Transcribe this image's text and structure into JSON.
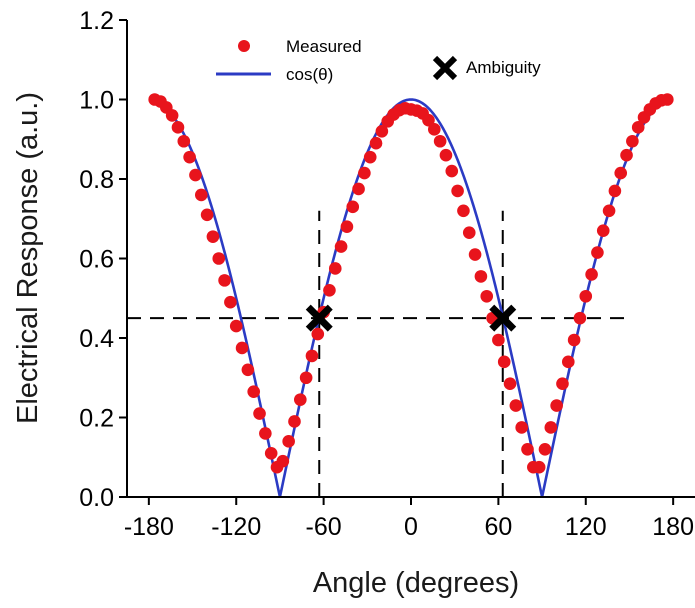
{
  "chart_data": {
    "type": "scatter",
    "xlabel": "Angle (degrees)",
    "ylabel": "Electrical Response (a.u.)",
    "xlim": [
      -195,
      195
    ],
    "ylim": [
      0,
      1.2
    ],
    "x_ticks": [
      -180,
      -120,
      -60,
      0,
      60,
      120,
      180
    ],
    "x_tick_labels": [
      "-180",
      "-120",
      "-60",
      "0",
      "60",
      "120",
      "180"
    ],
    "y_ticks": [
      0.0,
      0.2,
      0.4,
      0.6,
      0.8,
      1.0,
      1.2
    ],
    "y_tick_labels": [
      "0.0",
      "0.2",
      "0.4",
      "0.6",
      "0.8",
      "1.0",
      "1.2"
    ],
    "grid": false,
    "legend_position": "top",
    "series": [
      {
        "name": "Measured",
        "kind": "scatter",
        "color": "#e8141c",
        "x": [
          -176,
          -172,
          -168,
          -164,
          -160,
          -156,
          -152,
          -148,
          -144,
          -140,
          -136,
          -132,
          -128,
          -124,
          -120,
          -116,
          -112,
          -108,
          -104,
          -100,
          -96,
          -92,
          -88,
          -84,
          -80,
          -76,
          -72,
          -68,
          -64,
          -60,
          -56,
          -52,
          -48,
          -44,
          -40,
          -36,
          -32,
          -28,
          -24,
          -20,
          -16,
          -12,
          -8,
          -4,
          0,
          4,
          8,
          12,
          16,
          20,
          24,
          28,
          32,
          36,
          40,
          44,
          48,
          52,
          56,
          60,
          64,
          68,
          72,
          76,
          80,
          84,
          88,
          92,
          96,
          100,
          104,
          108,
          112,
          116,
          120,
          124,
          128,
          132,
          136,
          140,
          144,
          148,
          152,
          156,
          160,
          164,
          168,
          172,
          176
        ],
        "y": [
          1.0,
          0.995,
          0.98,
          0.96,
          0.93,
          0.895,
          0.855,
          0.81,
          0.76,
          0.71,
          0.655,
          0.6,
          0.545,
          0.49,
          0.43,
          0.375,
          0.32,
          0.265,
          0.21,
          0.16,
          0.11,
          0.075,
          0.09,
          0.14,
          0.19,
          0.245,
          0.3,
          0.355,
          0.41,
          0.465,
          0.52,
          0.575,
          0.63,
          0.68,
          0.73,
          0.775,
          0.815,
          0.855,
          0.89,
          0.92,
          0.945,
          0.962,
          0.973,
          0.978,
          0.975,
          0.972,
          0.965,
          0.948,
          0.925,
          0.895,
          0.86,
          0.82,
          0.77,
          0.72,
          0.665,
          0.61,
          0.555,
          0.505,
          0.45,
          0.395,
          0.34,
          0.285,
          0.23,
          0.175,
          0.12,
          0.075,
          0.075,
          0.12,
          0.175,
          0.23,
          0.285,
          0.34,
          0.395,
          0.45,
          0.505,
          0.56,
          0.615,
          0.67,
          0.72,
          0.77,
          0.815,
          0.86,
          0.895,
          0.93,
          0.955,
          0.975,
          0.99,
          0.998,
          1.0
        ]
      },
      {
        "name": "cos(θ)",
        "kind": "line",
        "color": "#2b3bc4",
        "function": "abs_cos_deg",
        "x_range": [
          -176,
          176
        ]
      },
      {
        "name": "Ambiguity",
        "kind": "marker",
        "color": "#000000",
        "x": [
          -63,
          63
        ],
        "y": [
          0.45,
          0.45
        ]
      }
    ],
    "reference_lines": {
      "horizontal": [
        {
          "y": 0.45,
          "x_from": -195,
          "x_to": 150
        }
      ],
      "vertical": [
        {
          "x": -63,
          "y_from": 0,
          "y_to": 0.72
        },
        {
          "x": 63,
          "y_from": 0,
          "y_to": 0.72
        }
      ]
    }
  }
}
